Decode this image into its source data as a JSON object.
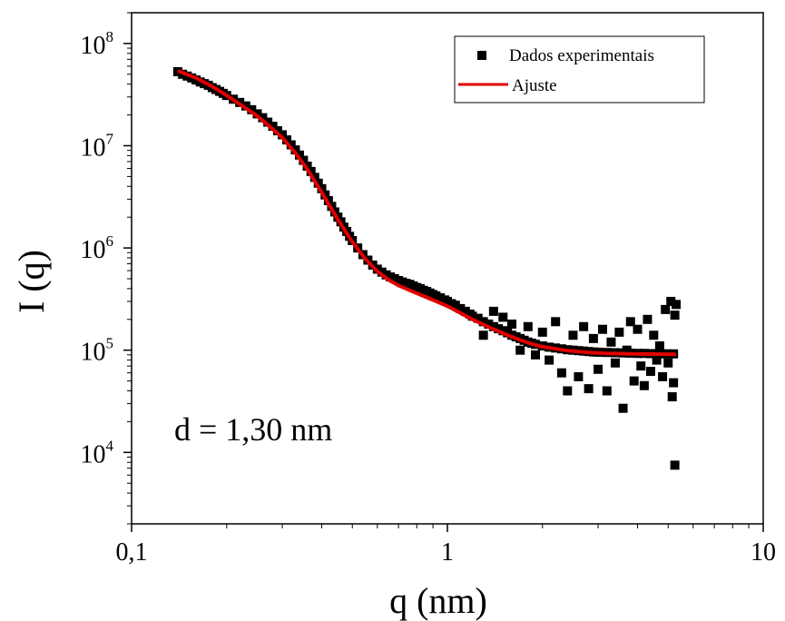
{
  "chart_data": {
    "type": "scatter",
    "xlabel": "q (nm)",
    "ylabel": "I (q)",
    "x_scale": "log",
    "y_scale": "log",
    "xlim": [
      0.1,
      10
    ],
    "ylim": [
      2000,
      200000000
    ],
    "x_ticks": [
      {
        "value": 0.1,
        "label": "0,1"
      },
      {
        "value": 1,
        "label": "1"
      },
      {
        "value": 10,
        "label": "10"
      }
    ],
    "y_ticks": [
      {
        "value": 10000,
        "base": "10",
        "exp": "4"
      },
      {
        "value": 100000,
        "base": "10",
        "exp": "5"
      },
      {
        "value": 1000000,
        "base": "10",
        "exp": "6"
      },
      {
        "value": 10000000,
        "base": "10",
        "exp": "7"
      },
      {
        "value": 100000000,
        "base": "10",
        "exp": "8"
      }
    ],
    "legend_position": "top-right",
    "annotation": "d = 1,30 nm",
    "series": [
      {
        "name": "Dados experimentais",
        "style": "square-markers",
        "color": "#000000",
        "points": [
          [
            0.14,
            53000000
          ],
          [
            0.145,
            50000000
          ],
          [
            0.15,
            48000000
          ],
          [
            0.155,
            46000000
          ],
          [
            0.16,
            44000000
          ],
          [
            0.165,
            42000000
          ],
          [
            0.17,
            40500000
          ],
          [
            0.175,
            39000000
          ],
          [
            0.18,
            37000000
          ],
          [
            0.185,
            35500000
          ],
          [
            0.19,
            34000000
          ],
          [
            0.195,
            32500000
          ],
          [
            0.2,
            31000000
          ],
          [
            0.21,
            28500000
          ],
          [
            0.22,
            26500000
          ],
          [
            0.23,
            24500000
          ],
          [
            0.24,
            22500000
          ],
          [
            0.25,
            20500000
          ],
          [
            0.26,
            18800000
          ],
          [
            0.27,
            17000000
          ],
          [
            0.28,
            15500000
          ],
          [
            0.29,
            14000000
          ],
          [
            0.3,
            12800000
          ],
          [
            0.31,
            11400000
          ],
          [
            0.32,
            10200000
          ],
          [
            0.33,
            9100000
          ],
          [
            0.34,
            8100000
          ],
          [
            0.35,
            7200000
          ],
          [
            0.36,
            6300000
          ],
          [
            0.37,
            5600000
          ],
          [
            0.38,
            4900000
          ],
          [
            0.39,
            4300000
          ],
          [
            0.4,
            3800000
          ],
          [
            0.41,
            3300000
          ],
          [
            0.42,
            2900000
          ],
          [
            0.43,
            2550000
          ],
          [
            0.44,
            2250000
          ],
          [
            0.45,
            2000000
          ],
          [
            0.46,
            1800000
          ],
          [
            0.47,
            1600000
          ],
          [
            0.48,
            1450000
          ],
          [
            0.49,
            1300000
          ],
          [
            0.5,
            1180000
          ],
          [
            0.52,
            1000000
          ],
          [
            0.54,
            860000
          ],
          [
            0.56,
            760000
          ],
          [
            0.58,
            680000
          ],
          [
            0.6,
            620000
          ],
          [
            0.62,
            580000
          ],
          [
            0.64,
            545000
          ],
          [
            0.66,
            520000
          ],
          [
            0.68,
            500000
          ],
          [
            0.7,
            480000
          ],
          [
            0.72,
            465000
          ],
          [
            0.74,
            450000
          ],
          [
            0.76,
            440000
          ],
          [
            0.78,
            425000
          ],
          [
            0.8,
            410000
          ],
          [
            0.82,
            400000
          ],
          [
            0.84,
            385000
          ],
          [
            0.86,
            375000
          ],
          [
            0.88,
            362000
          ],
          [
            0.9,
            350000
          ],
          [
            0.92,
            340000
          ],
          [
            0.95,
            325000
          ],
          [
            0.98,
            310000
          ],
          [
            1.0,
            300000
          ],
          [
            1.03,
            285000
          ],
          [
            1.06,
            275000
          ],
          [
            1.1,
            255000
          ],
          [
            1.14,
            240000
          ],
          [
            1.18,
            225000
          ],
          [
            1.2,
            215000
          ],
          [
            1.25,
            205000
          ],
          [
            1.3,
            190000
          ],
          [
            1.35,
            180000
          ],
          [
            1.4,
            170000
          ],
          [
            1.45,
            162000
          ],
          [
            1.5,
            155000
          ],
          [
            1.55,
            148000
          ],
          [
            1.6,
            140000
          ],
          [
            1.65,
            135000
          ],
          [
            1.7,
            130000
          ],
          [
            1.75,
            125000
          ],
          [
            1.8,
            120000
          ],
          [
            1.85,
            117000
          ],
          [
            1.9,
            114000
          ],
          [
            2.0,
            110000
          ],
          [
            2.1,
            107000
          ],
          [
            2.2,
            105000
          ],
          [
            2.3,
            103000
          ],
          [
            2.4,
            101000
          ],
          [
            2.5,
            100000
          ],
          [
            2.6,
            99000
          ],
          [
            2.7,
            98000
          ],
          [
            2.8,
            97000
          ],
          [
            2.9,
            96000
          ],
          [
            3.0,
            95500
          ],
          [
            3.2,
            95000
          ],
          [
            3.4,
            94500
          ],
          [
            3.6,
            94000
          ],
          [
            3.8,
            93500
          ],
          [
            4.0,
            93000
          ],
          [
            4.2,
            93000
          ],
          [
            4.4,
            92500
          ],
          [
            4.6,
            92500
          ],
          [
            4.8,
            92000
          ],
          [
            5.0,
            92000
          ],
          [
            5.2,
            92000
          ],
          [
            1.3,
            140000
          ],
          [
            1.4,
            240000
          ],
          [
            1.5,
            210000
          ],
          [
            1.6,
            180000
          ],
          [
            1.7,
            100000
          ],
          [
            1.8,
            170000
          ],
          [
            1.9,
            90000
          ],
          [
            2.0,
            150000
          ],
          [
            2.1,
            80000
          ],
          [
            2.2,
            190000
          ],
          [
            2.3,
            60000
          ],
          [
            2.4,
            40000
          ],
          [
            2.5,
            140000
          ],
          [
            2.6,
            55000
          ],
          [
            2.7,
            170000
          ],
          [
            2.8,
            42000
          ],
          [
            2.9,
            130000
          ],
          [
            3.0,
            65000
          ],
          [
            3.1,
            160000
          ],
          [
            3.2,
            40000
          ],
          [
            3.3,
            120000
          ],
          [
            3.4,
            75000
          ],
          [
            3.5,
            150000
          ],
          [
            3.6,
            27000
          ],
          [
            3.7,
            100000
          ],
          [
            3.8,
            190000
          ],
          [
            3.9,
            50000
          ],
          [
            4.0,
            160000
          ],
          [
            4.1,
            70000
          ],
          [
            4.2,
            45000
          ],
          [
            4.3,
            200000
          ],
          [
            4.4,
            62000
          ],
          [
            4.5,
            140000
          ],
          [
            4.6,
            80000
          ],
          [
            4.7,
            110000
          ],
          [
            4.8,
            55000
          ],
          [
            4.9,
            250000
          ],
          [
            5.0,
            75000
          ],
          [
            5.1,
            300000
          ],
          [
            5.15,
            35000
          ],
          [
            5.2,
            48000
          ],
          [
            5.25,
            220000
          ],
          [
            5.3,
            280000
          ],
          [
            5.25,
            7500
          ]
        ]
      },
      {
        "name": "Ajuste",
        "style": "line",
        "color": "#e00000",
        "points": [
          [
            0.14,
            54000000
          ],
          [
            0.16,
            46000000
          ],
          [
            0.18,
            38000000
          ],
          [
            0.2,
            31000000
          ],
          [
            0.22,
            25500000
          ],
          [
            0.25,
            19500000
          ],
          [
            0.28,
            14500000
          ],
          [
            0.3,
            12000000
          ],
          [
            0.33,
            8500000
          ],
          [
            0.36,
            5900000
          ],
          [
            0.4,
            3500000
          ],
          [
            0.43,
            2400000
          ],
          [
            0.46,
            1700000
          ],
          [
            0.5,
            1150000
          ],
          [
            0.55,
            780000
          ],
          [
            0.6,
            590000
          ],
          [
            0.65,
            490000
          ],
          [
            0.7,
            430000
          ],
          [
            0.8,
            360000
          ],
          [
            0.9,
            310000
          ],
          [
            1.0,
            270000
          ],
          [
            1.2,
            200000
          ],
          [
            1.4,
            160000
          ],
          [
            1.6,
            135000
          ],
          [
            1.8,
            118000
          ],
          [
            2.0,
            108000
          ],
          [
            2.4,
            99000
          ],
          [
            2.8,
            95000
          ],
          [
            3.2,
            93000
          ],
          [
            3.8,
            92000
          ],
          [
            4.5,
            91500
          ],
          [
            5.3,
            91000
          ]
        ]
      }
    ]
  }
}
